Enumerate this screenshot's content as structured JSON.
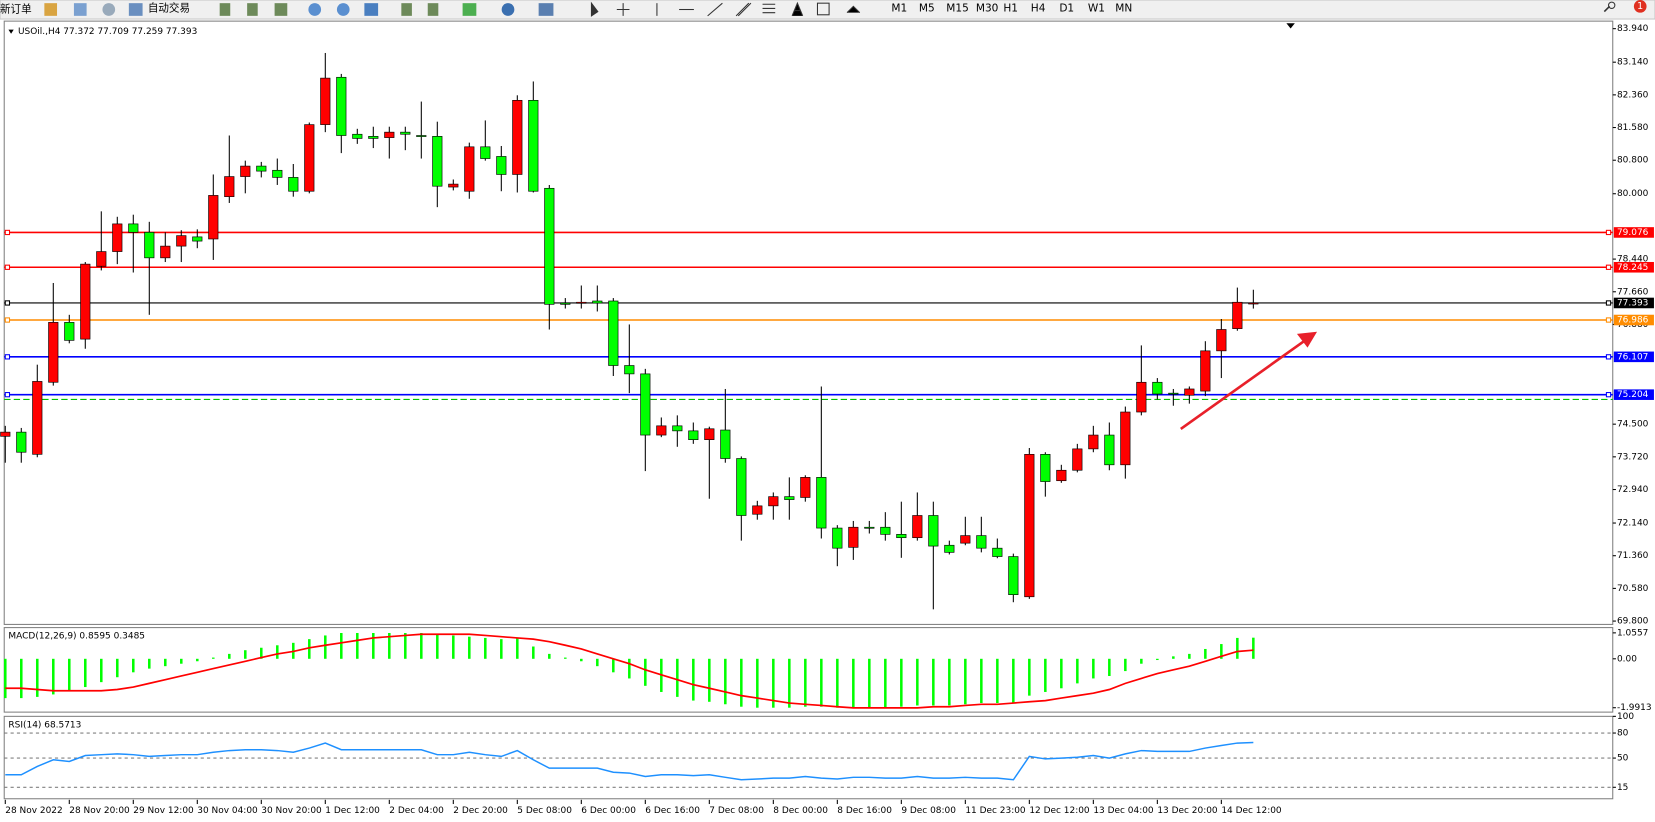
{
  "toolbar": {
    "new_order": "新订单",
    "auto_trading": "自动交易",
    "timeframes": [
      "M1",
      "M5",
      "M15",
      "M30",
      "H1",
      "H4",
      "D1",
      "W1",
      "MN"
    ],
    "notifications": "1"
  },
  "chart_data": [
    {
      "type": "candlestick",
      "title": "USOil.,H4  77.372 77.709 77.259 77.393",
      "categories": [
        "28 Nov 2022",
        null,
        null,
        null,
        "28 Nov 20:00",
        null,
        null,
        null,
        "29 Nov 12:00",
        null,
        null,
        null,
        "30 Nov 04:00",
        null,
        null,
        null,
        "30 Nov 20:00",
        null,
        null,
        null,
        "1 Dec 12:00",
        null,
        null,
        null,
        "2 Dec 04:00",
        null,
        null,
        null,
        "2 Dec 20:00",
        null,
        null,
        null,
        "5 Dec 08:00",
        null,
        null,
        null,
        "6 Dec 00:00",
        null,
        null,
        null,
        "6 Dec 16:00",
        null,
        null,
        null,
        "7 Dec 08:00",
        null,
        null,
        null,
        "8 Dec 00:00",
        null,
        null,
        null,
        "8 Dec 16:00",
        null,
        null,
        null,
        "9 Dec 08:00",
        null,
        null,
        null,
        "11 Dec 23:00",
        null,
        null,
        null,
        "12 Dec 12:00",
        null,
        null,
        null,
        "13 Dec 04:00",
        null,
        null,
        null,
        "13 Dec 20:00",
        null,
        null,
        null,
        "14 Dec 12:00",
        null,
        null
      ],
      "open": [
        74.21,
        74.31,
        73.78,
        75.5,
        76.93,
        76.53,
        78.27,
        78.62,
        79.28,
        79.08,
        78.47,
        78.75,
        78.97,
        78.92,
        79.93,
        80.41,
        80.66,
        80.56,
        80.39,
        80.06,
        81.65,
        82.78,
        81.42,
        81.37,
        81.34,
        81.47,
        81.39,
        81.37,
        80.16,
        80.06,
        81.12,
        80.89,
        80.46,
        82.23,
        80.13,
        77.39,
        77.39,
        77.44,
        77.44,
        75.9,
        75.7,
        74.24,
        74.46,
        74.34,
        74.13,
        74.36,
        73.68,
        72.35,
        72.55,
        72.77,
        72.75,
        73.23,
        72.02,
        71.56,
        72.04,
        72.04,
        71.87,
        71.79,
        72.32,
        71.61,
        71.66,
        71.84,
        71.54,
        71.34,
        70.38,
        73.78,
        73.15,
        73.4,
        73.91,
        74.24,
        73.53,
        74.79,
        75.5,
        75.24,
        75.19,
        75.29,
        76.25,
        76.78,
        77.372
      ],
      "high": [
        74.46,
        74.41,
        75.92,
        77.87,
        77.11,
        78.37,
        79.58,
        79.45,
        79.5,
        79.33,
        79.08,
        79.13,
        79.15,
        80.46,
        81.39,
        80.79,
        80.76,
        80.84,
        80.71,
        81.7,
        83.36,
        82.86,
        81.55,
        81.6,
        81.6,
        81.6,
        82.2,
        81.72,
        80.34,
        81.22,
        81.75,
        81.14,
        82.35,
        82.68,
        80.21,
        77.51,
        77.81,
        77.81,
        77.51,
        76.88,
        75.82,
        74.66,
        74.71,
        74.54,
        74.44,
        75.34,
        73.73,
        72.67,
        72.87,
        73.23,
        73.28,
        75.4,
        72.09,
        72.19,
        72.19,
        72.4,
        72.65,
        72.87,
        72.65,
        71.72,
        72.29,
        72.29,
        71.77,
        71.41,
        73.93,
        73.83,
        73.53,
        74.03,
        74.46,
        74.54,
        74.92,
        76.38,
        75.6,
        75.34,
        75.4,
        76.48,
        77.01,
        77.76,
        77.709
      ],
      "low": [
        73.58,
        73.58,
        73.71,
        75.42,
        76.43,
        76.3,
        78.17,
        78.32,
        78.12,
        77.11,
        78.37,
        78.37,
        78.7,
        78.42,
        79.78,
        80.01,
        80.39,
        80.21,
        79.93,
        80.01,
        81.47,
        80.97,
        81.19,
        81.09,
        80.84,
        81.04,
        80.84,
        79.68,
        80.08,
        79.88,
        80.79,
        80.06,
        80.03,
        80.03,
        76.76,
        77.26,
        77.26,
        77.19,
        75.65,
        75.24,
        73.38,
        74.19,
        73.96,
        74.03,
        72.72,
        73.58,
        71.72,
        72.22,
        72.22,
        72.22,
        72.65,
        71.77,
        71.11,
        71.26,
        71.89,
        71.72,
        71.31,
        71.72,
        70.08,
        71.39,
        71.61,
        71.44,
        71.3,
        70.25,
        70.33,
        72.77,
        73.1,
        73.35,
        73.83,
        73.4,
        73.2,
        74.71,
        75.09,
        74.94,
        74.99,
        75.17,
        75.6,
        76.73,
        77.259
      ],
      "close": [
        74.31,
        73.83,
        75.52,
        76.93,
        76.5,
        78.32,
        78.62,
        79.28,
        79.08,
        78.47,
        78.75,
        79.0,
        78.87,
        79.96,
        80.41,
        80.66,
        80.54,
        80.39,
        80.06,
        81.65,
        82.76,
        81.39,
        81.32,
        81.32,
        81.47,
        81.42,
        81.37,
        80.18,
        80.23,
        81.12,
        80.84,
        80.46,
        82.23,
        80.06,
        77.36,
        77.36,
        77.41,
        77.39,
        75.9,
        75.7,
        74.24,
        74.46,
        74.34,
        74.13,
        74.39,
        73.68,
        72.32,
        72.55,
        72.77,
        72.7,
        73.23,
        72.02,
        71.54,
        72.04,
        72.02,
        71.87,
        71.79,
        72.32,
        71.59,
        71.44,
        71.84,
        71.54,
        71.34,
        70.43,
        73.78,
        73.13,
        73.4,
        73.91,
        74.24,
        73.53,
        74.79,
        75.5,
        75.22,
        75.22,
        75.34,
        76.25,
        76.76,
        77.41,
        77.393
      ],
      "up_color": "#ff0000",
      "down_color": "#00ff00",
      "wick_color": "#000000",
      "ylim": [
        69.72,
        84.12
      ],
      "yticks": [
        {
          "value": 83.94,
          "label": "83.940"
        },
        {
          "value": 83.14,
          "label": "83.140"
        },
        {
          "value": 82.36,
          "label": "82.360"
        },
        {
          "value": 81.58,
          "label": "81.580"
        },
        {
          "value": 80.8,
          "label": "80.800"
        },
        {
          "value": 80.0,
          "label": "80.000"
        },
        {
          "value": 78.44,
          "label": "78.440"
        },
        {
          "value": 77.66,
          "label": "77.660"
        },
        {
          "value": 76.88,
          "label": "76.880"
        },
        {
          "value": 74.5,
          "label": "74.500"
        },
        {
          "value": 73.72,
          "label": "73.720"
        },
        {
          "value": 72.94,
          "label": "72.940"
        },
        {
          "value": 72.14,
          "label": "72.140"
        },
        {
          "value": 71.36,
          "label": "71.360"
        },
        {
          "value": 70.58,
          "label": "70.580"
        },
        {
          "value": 69.8,
          "label": "69.800"
        }
      ],
      "hlines": [
        {
          "value": 79.076,
          "color": "#ff0000"
        },
        {
          "value": 78.245,
          "color": "#ff0000"
        },
        {
          "value": 77.393,
          "color": "#000000"
        },
        {
          "value": 76.986,
          "color": "#ff8c00"
        },
        {
          "value": 76.107,
          "color": "#0000ff"
        },
        {
          "value": 75.204,
          "color": "#0000ff"
        }
      ],
      "order_line": {
        "value": 75.09,
        "color": "#00c000"
      },
      "grid": false
    },
    {
      "type": "macd",
      "title": "MACD(12,26,9) 0.8595 0.3485",
      "values": [
        -1.6,
        -1.6,
        -1.55,
        -1.45,
        -1.3,
        -1.15,
        -0.95,
        -0.75,
        -0.55,
        -0.4,
        -0.3,
        -0.2,
        -0.1,
        0.05,
        0.2,
        0.35,
        0.45,
        0.55,
        0.65,
        0.8,
        0.95,
        1.05,
        1.05,
        1.05,
        1.05,
        1.05,
        1.05,
        1.0,
        0.95,
        0.9,
        0.85,
        0.8,
        0.85,
        0.5,
        0.2,
        0.05,
        -0.1,
        -0.3,
        -0.55,
        -0.8,
        -1.1,
        -1.35,
        -1.55,
        -1.7,
        -1.75,
        -1.85,
        -1.95,
        -1.99,
        -1.99,
        -1.99,
        -1.95,
        -1.95,
        -1.99,
        -1.99,
        -1.99,
        -1.99,
        -1.95,
        -1.9,
        -1.9,
        -1.9,
        -1.85,
        -1.8,
        -1.8,
        -1.8,
        -1.5,
        -1.35,
        -1.2,
        -1.0,
        -0.8,
        -0.7,
        -0.5,
        -0.2,
        -0.05,
        0.1,
        0.2,
        0.4,
        0.6,
        0.85,
        0.8595
      ],
      "signal": [
        -1.2,
        -1.2,
        -1.25,
        -1.3,
        -1.3,
        -1.3,
        -1.3,
        -1.25,
        -1.15,
        -1.0,
        -0.85,
        -0.7,
        -0.55,
        -0.4,
        -0.25,
        -0.1,
        0.05,
        0.2,
        0.3,
        0.45,
        0.55,
        0.65,
        0.75,
        0.85,
        0.9,
        0.95,
        1.0,
        1.0,
        1.0,
        1.0,
        0.95,
        0.9,
        0.85,
        0.8,
        0.7,
        0.55,
        0.4,
        0.2,
        0.0,
        -0.2,
        -0.45,
        -0.65,
        -0.85,
        -1.05,
        -1.2,
        -1.35,
        -1.5,
        -1.6,
        -1.7,
        -1.8,
        -1.85,
        -1.9,
        -1.95,
        -2.0,
        -2.0,
        -2.0,
        -2.0,
        -2.0,
        -1.95,
        -1.95,
        -1.9,
        -1.85,
        -1.85,
        -1.8,
        -1.75,
        -1.7,
        -1.6,
        -1.5,
        -1.4,
        -1.25,
        -1.0,
        -0.8,
        -0.6,
        -0.45,
        -0.3,
        -0.1,
        0.1,
        0.3,
        0.3485
      ],
      "hist_color": "#00ff00",
      "signal_color": "#ff0000",
      "ylim": [
        -2.17,
        1.27
      ],
      "yticks": [
        1.0557,
        {
          "value": 0,
          "label": "0.00"
        },
        -1.9913
      ],
      "grid": false
    },
    {
      "type": "line",
      "title": "RSI(14) 68.5713",
      "values": [
        30,
        30,
        40,
        48,
        46,
        53,
        54,
        55,
        54,
        52,
        53,
        54,
        54,
        57,
        59,
        60,
        60,
        59,
        57,
        62,
        68,
        60,
        60,
        60,
        60,
        60,
        60,
        54,
        54,
        57,
        54,
        52,
        59,
        48,
        38,
        38,
        38,
        38,
        33,
        32,
        28,
        30,
        30,
        29,
        30,
        27,
        24,
        25,
        26,
        26,
        28,
        26,
        25,
        27,
        27,
        26,
        26,
        28,
        26,
        26,
        27,
        26,
        26,
        24,
        52,
        49,
        50,
        51,
        53,
        50,
        55,
        59,
        58,
        58,
        58,
        62,
        65,
        68,
        68.5713
      ],
      "color": "#1e90ff",
      "ylim": [
        0,
        100
      ],
      "yticks": [
        100,
        80,
        50,
        15
      ],
      "grid": true
    }
  ]
}
